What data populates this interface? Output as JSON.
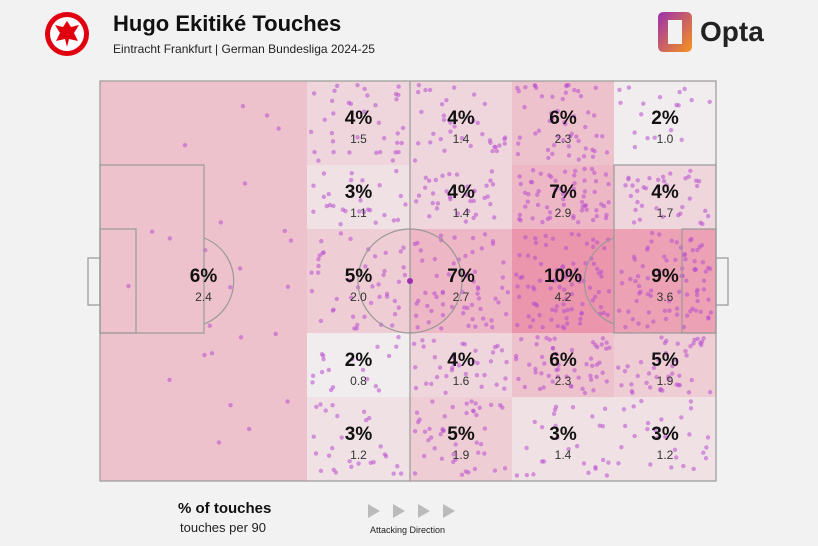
{
  "header": {
    "title": "Hugo Ekitiké Touches",
    "subtitle": "Eintracht Frankfurt | German Bundesliga 2024-25",
    "brand": "Opta"
  },
  "legend": {
    "primary": "% of touches",
    "secondary": "touches per 90",
    "direction": "Attacking Direction"
  },
  "colors": {
    "zone": "#e8718f",
    "dot": "#b84fd0",
    "line": "#999999"
  },
  "chart_data": {
    "type": "heatmap",
    "title": "Hugo Ekitiké Touches",
    "zones": [
      {
        "id": "own-half-deep",
        "col": 0,
        "row": "all",
        "pct": "6%",
        "p90": "2.4",
        "value": 6
      },
      {
        "col": 1,
        "row": 0,
        "pct": "4%",
        "p90": "1.5",
        "value": 4
      },
      {
        "col": 1,
        "row": 1,
        "pct": "3%",
        "p90": "1.1",
        "value": 3
      },
      {
        "col": 1,
        "row": 2,
        "pct": "5%",
        "p90": "2.0",
        "value": 5
      },
      {
        "col": 1,
        "row": 3,
        "pct": "2%",
        "p90": "0.8",
        "value": 2
      },
      {
        "col": 1,
        "row": 4,
        "pct": "3%",
        "p90": "1.2",
        "value": 3
      },
      {
        "col": 2,
        "row": 0,
        "pct": "4%",
        "p90": "1.4",
        "value": 4
      },
      {
        "col": 2,
        "row": 1,
        "pct": "4%",
        "p90": "1.4",
        "value": 4
      },
      {
        "col": 2,
        "row": 2,
        "pct": "7%",
        "p90": "2.7",
        "value": 7
      },
      {
        "col": 2,
        "row": 3,
        "pct": "4%",
        "p90": "1.6",
        "value": 4
      },
      {
        "col": 2,
        "row": 4,
        "pct": "5%",
        "p90": "1.9",
        "value": 5
      },
      {
        "col": 3,
        "row": 0,
        "pct": "6%",
        "p90": "2.3",
        "value": 6
      },
      {
        "col": 3,
        "row": 1,
        "pct": "7%",
        "p90": "2.9",
        "value": 7
      },
      {
        "col": 3,
        "row": 2,
        "pct": "10%",
        "p90": "4.2",
        "value": 10
      },
      {
        "col": 3,
        "row": 3,
        "pct": "6%",
        "p90": "2.3",
        "value": 6
      },
      {
        "col": 3,
        "row": 4,
        "pct": "3%",
        "p90": "1.4",
        "value": 3
      },
      {
        "col": 4,
        "row": 0,
        "pct": "2%",
        "p90": "1.0",
        "value": 2
      },
      {
        "col": 4,
        "row": 1,
        "pct": "4%",
        "p90": "1.7",
        "value": 4
      },
      {
        "col": 4,
        "row": 2,
        "pct": "9%",
        "p90": "3.6",
        "value": 9
      },
      {
        "col": 4,
        "row": 3,
        "pct": "5%",
        "p90": "1.9",
        "value": 5
      },
      {
        "col": 4,
        "row": 4,
        "pct": "3%",
        "p90": "1.2",
        "value": 3
      }
    ]
  }
}
